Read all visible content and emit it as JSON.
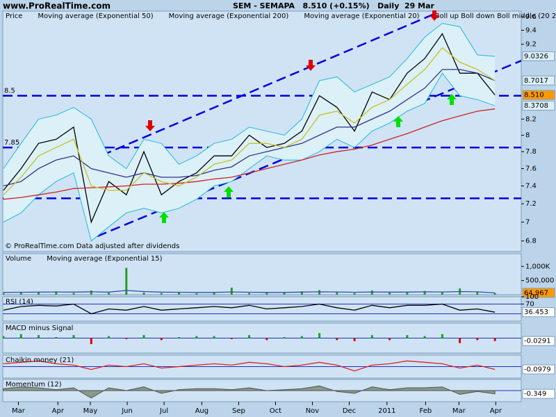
{
  "header": {
    "site": "www.ProRealTime.com",
    "title": "SEM - SEMAPA   8.510 (+0.15%)   Daily  29 Mar"
  },
  "footnote": "© ProRealTime.com Data adjusted after dividends",
  "chart_data": [
    {
      "type": "line",
      "log": true,
      "x": [
        0,
        2,
        4,
        6,
        8,
        10,
        12,
        14,
        16,
        18,
        20,
        22,
        24,
        26,
        28,
        30,
        32,
        34,
        36,
        38,
        40,
        42,
        44,
        46,
        48,
        50,
        52,
        54,
        56
      ],
      "xlim": [
        0,
        59
      ],
      "xticks": [
        {
          "value": 1.7,
          "label": "Mar"
        },
        {
          "value": 6.2,
          "label": "Apr"
        },
        {
          "value": 9.9,
          "label": "May"
        },
        {
          "value": 14.1,
          "label": "Jun"
        },
        {
          "value": 18.3,
          "label": "Jul"
        },
        {
          "value": 22.6,
          "label": "Aug"
        },
        {
          "value": 26.8,
          "label": "Sep"
        },
        {
          "value": 31,
          "label": "Oct"
        },
        {
          "value": 35.2,
          "label": "Nov"
        },
        {
          "value": 39.4,
          "label": "Dec"
        },
        {
          "value": 43.7,
          "label": "2011"
        },
        {
          "value": 48.1,
          "label": "Feb"
        },
        {
          "value": 51.9,
          "label": "Mar"
        },
        {
          "value": 56.1,
          "label": "Apr"
        }
      ],
      "ylim": [
        6.69,
        9.68
      ],
      "yticks": [
        6.8,
        7,
        7.2,
        7.4,
        7.6,
        7.8,
        8,
        8.2,
        9.2,
        9.4,
        9.6
      ],
      "hlines": [
        8.5,
        7.85,
        7.26
      ],
      "hlines_labeled": [
        true,
        true,
        false
      ],
      "hline_color": "#0000e0",
      "trendlines": [
        {
          "x": [
            9.7,
            49.5
          ],
          "y": [
            7.69,
            9.66
          ]
        },
        {
          "x": [
            10.7,
            59
          ],
          "y": [
            6.85,
            8.97
          ]
        }
      ],
      "series": [
        {
          "name": "Price",
          "color": "#000000",
          "values": [
            7.35,
            7.6,
            7.9,
            7.95,
            8.1,
            7.0,
            7.45,
            7.3,
            7.8,
            7.3,
            7.45,
            7.55,
            7.75,
            7.75,
            8.0,
            7.85,
            7.9,
            8.05,
            8.5,
            8.35,
            8.05,
            8.55,
            8.45,
            8.8,
            9.0,
            9.35,
            8.8,
            8.8,
            8.51
          ]
        },
        {
          "name": "Moving average (Exponential 50)",
          "color": "#30308c",
          "values": [
            7.4,
            7.45,
            7.6,
            7.7,
            7.75,
            7.6,
            7.55,
            7.5,
            7.55,
            7.5,
            7.5,
            7.52,
            7.58,
            7.62,
            7.75,
            7.8,
            7.85,
            7.9,
            8.0,
            8.1,
            8.1,
            8.2,
            8.3,
            8.45,
            8.6,
            8.85,
            8.85,
            8.8,
            8.7
          ]
        },
        {
          "name": "Moving average (Exponential 200)",
          "color": "#d02020",
          "values": [
            7.25,
            7.27,
            7.3,
            7.33,
            7.37,
            7.38,
            7.39,
            7.4,
            7.42,
            7.42,
            7.43,
            7.45,
            7.48,
            7.5,
            7.55,
            7.6,
            7.65,
            7.7,
            7.76,
            7.8,
            7.83,
            7.88,
            7.95,
            8.02,
            8.1,
            8.18,
            8.24,
            8.3,
            8.33
          ]
        },
        {
          "name": "Moving average (Exponential 20)",
          "color": "#c8c020",
          "values": [
            7.3,
            7.5,
            7.75,
            7.85,
            7.95,
            7.4,
            7.35,
            7.35,
            7.55,
            7.45,
            7.4,
            7.5,
            7.65,
            7.7,
            7.9,
            7.9,
            7.85,
            7.95,
            8.25,
            8.3,
            8.15,
            8.35,
            8.45,
            8.65,
            8.85,
            9.15,
            8.95,
            8.85,
            8.7
          ]
        },
        {
          "name": "Boll up Boll down Boll middle (20 2)",
          "type": "band",
          "color": "#20b8d8",
          "fill": "#dcf0f8",
          "upper": [
            7.6,
            7.9,
            8.2,
            8.25,
            8.35,
            8.2,
            7.75,
            7.6,
            7.95,
            7.9,
            7.65,
            7.75,
            7.9,
            7.95,
            8.1,
            8.05,
            8.0,
            8.2,
            8.7,
            8.75,
            8.55,
            8.65,
            8.75,
            9.0,
            9.3,
            9.5,
            9.45,
            9.05,
            9.03
          ],
          "lower": [
            7.0,
            7.1,
            7.3,
            7.45,
            7.55,
            6.8,
            6.95,
            7.1,
            7.15,
            7.1,
            7.15,
            7.25,
            7.4,
            7.45,
            7.6,
            7.75,
            7.7,
            7.7,
            7.8,
            7.95,
            7.85,
            8.05,
            8.15,
            8.3,
            8.4,
            8.8,
            8.5,
            8.45,
            8.37
          ]
        }
      ],
      "value_boxes": [
        {
          "value": 9.0326,
          "color": "#10a8c8",
          "fill": "#dcf0f8"
        },
        {
          "value": 8.7017,
          "color": "#c8c020",
          "fill": "#dcf0f8"
        },
        {
          "value": 8.51,
          "label": "8.510",
          "color": "#000000",
          "fill": "#ff9900"
        },
        {
          "value": 8.3708,
          "color": "#10a8c8",
          "fill": "#dcf0f8"
        }
      ]
    },
    {
      "type": "bar",
      "ylim": [
        0,
        1450000
      ],
      "yticks": [
        {
          "value": 1000000,
          "label": "1,000K"
        },
        {
          "value": 500000,
          "label": "500,000"
        }
      ],
      "series": [
        {
          "name": "Volume",
          "color": "#2a9a2a",
          "values": [
            60000,
            80000,
            90000,
            120000,
            60000,
            150000,
            70000,
            950000,
            80000,
            60000,
            90000,
            50000,
            70000,
            250000,
            60000,
            80000,
            70000,
            120000,
            160000,
            90000,
            60000,
            150000,
            80000,
            100000,
            130000,
            90000,
            220000,
            110000,
            60000
          ]
        },
        {
          "name": "Moving average (Exponential 15)",
          "type": "line",
          "color": "#3050a0",
          "values": [
            80000,
            85000,
            90000,
            95000,
            90000,
            100000,
            90000,
            150000,
            110000,
            90000,
            85000,
            80000,
            80000,
            95000,
            85000,
            80000,
            80000,
            90000,
            100000,
            95000,
            85000,
            95000,
            90000,
            90000,
            100000,
            95000,
            110000,
            100000,
            64967
          ]
        }
      ],
      "value_boxes": [
        {
          "value": 64967,
          "label": "64,967",
          "color": "#000000",
          "fill": "#ff9900"
        }
      ]
    },
    {
      "type": "line",
      "ylim": [
        0,
        100
      ],
      "yticks": [
        100,
        70
      ],
      "hlines": [
        70,
        30
      ],
      "hline_color": "#2030c0",
      "series": [
        {
          "name": "RSI (14)",
          "color": "#000000",
          "values": [
            45,
            60,
            65,
            62,
            70,
            30,
            50,
            45,
            60,
            45,
            50,
            55,
            60,
            55,
            65,
            50,
            55,
            60,
            70,
            55,
            45,
            65,
            55,
            65,
            65,
            70,
            45,
            50,
            36.453
          ]
        }
      ],
      "value_boxes": [
        {
          "value": 36.453,
          "color": "#000000",
          "fill": "#ffffff"
        }
      ]
    },
    {
      "type": "bar",
      "ylim": [
        -0.15,
        0.15
      ],
      "hlines": [
        0
      ],
      "hline_color": "#2030c0",
      "series": [
        {
          "name": "MACD minus Signal",
          "color": "#00b000",
          "neg_color": "#e00000",
          "values": [
            0.02,
            0.04,
            0.03,
            0.01,
            0.03,
            -0.06,
            0.02,
            -0.01,
            0.03,
            -0.02,
            0.01,
            0.02,
            0.02,
            -0.01,
            0.03,
            -0.02,
            0.01,
            0.02,
            0.05,
            -0.02,
            -0.03,
            0.03,
            -0.02,
            0.03,
            0.02,
            0.04,
            -0.05,
            -0.02,
            -0.0291
          ]
        }
      ],
      "value_boxes": [
        {
          "value": -0.0291,
          "color": "#e00000",
          "fill": "#ffffff"
        }
      ]
    },
    {
      "type": "line",
      "ylim": [
        -0.4,
        0.4
      ],
      "hlines": [
        0
      ],
      "hline_color": "#2030c0",
      "series": [
        {
          "name": "Chaikin money (21)",
          "color": "#e02020",
          "values": [
            0.1,
            0.15,
            0.2,
            0.1,
            0.05,
            -0.1,
            0.05,
            0,
            0.1,
            -0.05,
            0,
            0.05,
            0.1,
            0.05,
            0.15,
            0.1,
            0,
            0.05,
            0.15,
            0.05,
            -0.15,
            0.05,
            0.1,
            0.2,
            0.15,
            0.1,
            -0.05,
            0.05,
            -0.0979
          ]
        }
      ],
      "value_boxes": [
        {
          "value": -0.0979,
          "color": "#e00000",
          "fill": "#ffffff"
        }
      ]
    },
    {
      "type": "area",
      "ylim": [
        -1.2,
        1.2
      ],
      "hlines": [
        0
      ],
      "hline_color": "#2030c0",
      "series": [
        {
          "name": "Momentum (12)",
          "color": "#505050",
          "fill": "#8a9a8a",
          "values": [
            0.2,
            0.4,
            0.3,
            0.1,
            0.3,
            -0.8,
            0.3,
            0,
            0.4,
            -0.3,
            0.1,
            0.2,
            0.2,
            0.1,
            0.3,
            0,
            0.1,
            0.2,
            0.5,
            -0.1,
            -0.3,
            0.4,
            0.1,
            0.3,
            0.3,
            0.4,
            -0.4,
            -0.1,
            -0.349
          ]
        }
      ],
      "value_boxes": [
        {
          "value": -0.349,
          "color": "#000000",
          "fill": "#ffffff"
        }
      ]
    }
  ]
}
